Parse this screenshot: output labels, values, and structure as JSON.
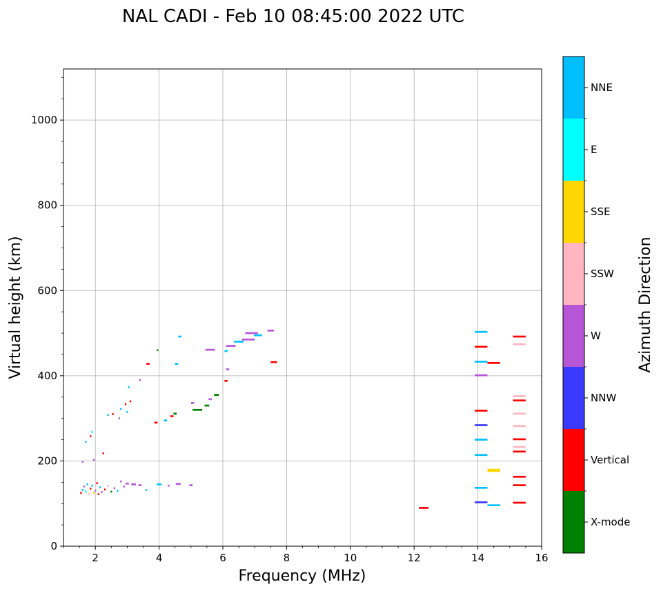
{
  "chart_data": {
    "type": "scatter",
    "title": "NAL CADI - Feb 10 08:45:00 2022 UTC",
    "xlabel": "Frequency (MHz)",
    "ylabel": "Virtual height (km)",
    "xlim": [
      1,
      16
    ],
    "ylim": [
      0,
      1120
    ],
    "xticks": [
      2,
      4,
      6,
      8,
      10,
      12,
      14,
      16
    ],
    "yticks": [
      0,
      200,
      400,
      600,
      800,
      1000
    ],
    "grid": true,
    "colorbar": {
      "label": "Azimuth Direction",
      "categories": [
        {
          "name": "X-mode",
          "color": "#008000"
        },
        {
          "name": "Vertical",
          "color": "#ff0000"
        },
        {
          "name": "NNW",
          "color": "#3a3aff"
        },
        {
          "name": "W",
          "color": "#b656d6"
        },
        {
          "name": "SSW",
          "color": "#ffb6c1"
        },
        {
          "name": "SSE",
          "color": "#ffd700"
        },
        {
          "name": "E",
          "color": "#00ffff"
        },
        {
          "name": "NNE",
          "color": "#00bfff"
        }
      ]
    },
    "echoes": [
      {
        "f": 1.55,
        "h": 125,
        "w": 0.05,
        "d": "Vertical"
      },
      {
        "f": 1.6,
        "h": 132,
        "w": 0.05,
        "d": "NNE"
      },
      {
        "f": 1.65,
        "h": 140,
        "w": 0.05,
        "d": "W"
      },
      {
        "f": 1.7,
        "h": 128,
        "w": 0.05,
        "d": "E"
      },
      {
        "f": 1.75,
        "h": 145,
        "w": 0.05,
        "d": "NNE"
      },
      {
        "f": 1.8,
        "h": 123,
        "w": 0.05,
        "d": "SSW"
      },
      {
        "f": 1.85,
        "h": 135,
        "w": 0.05,
        "d": "Vertical"
      },
      {
        "f": 1.9,
        "h": 142,
        "w": 0.05,
        "d": "NNE"
      },
      {
        "f": 1.95,
        "h": 125,
        "w": 0.05,
        "d": "SSE"
      },
      {
        "f": 2.0,
        "h": 130,
        "w": 0.05,
        "d": "W"
      },
      {
        "f": 2.05,
        "h": 148,
        "w": 0.05,
        "d": "Vertical"
      },
      {
        "f": 2.1,
        "h": 122,
        "w": 0.05,
        "d": "Vertical"
      },
      {
        "f": 2.15,
        "h": 138,
        "w": 0.05,
        "d": "NNE"
      },
      {
        "f": 2.2,
        "h": 127,
        "w": 0.05,
        "d": "W"
      },
      {
        "f": 2.3,
        "h": 133,
        "w": 0.05,
        "d": "Vertical"
      },
      {
        "f": 2.4,
        "h": 141,
        "w": 0.05,
        "d": "SSW"
      },
      {
        "f": 2.5,
        "h": 128,
        "w": 0.05,
        "d": "X-mode"
      },
      {
        "f": 2.6,
        "h": 136,
        "w": 0.05,
        "d": "W"
      },
      {
        "f": 2.7,
        "h": 130,
        "w": 0.05,
        "d": "NNE"
      },
      {
        "f": 2.8,
        "h": 152,
        "w": 0.05,
        "d": "W"
      },
      {
        "f": 2.9,
        "h": 140,
        "w": 0.05,
        "d": "W"
      },
      {
        "f": 3.0,
        "h": 147,
        "w": 0.1,
        "d": "W"
      },
      {
        "f": 3.2,
        "h": 145,
        "w": 0.15,
        "d": "W"
      },
      {
        "f": 3.4,
        "h": 143,
        "w": 0.1,
        "d": "W"
      },
      {
        "f": 3.6,
        "h": 132,
        "w": 0.05,
        "d": "NNE"
      },
      {
        "f": 4.0,
        "h": 145,
        "w": 0.15,
        "d": "NNE"
      },
      {
        "f": 4.3,
        "h": 142,
        "w": 0.05,
        "d": "W"
      },
      {
        "f": 4.6,
        "h": 146,
        "w": 0.15,
        "d": "W"
      },
      {
        "f": 5.0,
        "h": 143,
        "w": 0.1,
        "d": "W"
      },
      {
        "f": 1.6,
        "h": 198,
        "w": 0.05,
        "d": "W"
      },
      {
        "f": 1.7,
        "h": 245,
        "w": 0.05,
        "d": "NNE"
      },
      {
        "f": 1.85,
        "h": 258,
        "w": 0.05,
        "d": "Vertical"
      },
      {
        "f": 1.9,
        "h": 268,
        "w": 0.05,
        "d": "E"
      },
      {
        "f": 1.95,
        "h": 203,
        "w": 0.05,
        "d": "W"
      },
      {
        "f": 2.25,
        "h": 218,
        "w": 0.05,
        "d": "Vertical"
      },
      {
        "f": 2.4,
        "h": 308,
        "w": 0.05,
        "d": "NNE"
      },
      {
        "f": 2.55,
        "h": 310,
        "w": 0.05,
        "d": "Vertical"
      },
      {
        "f": 2.75,
        "h": 300,
        "w": 0.05,
        "d": "W"
      },
      {
        "f": 2.8,
        "h": 322,
        "w": 0.05,
        "d": "NNE"
      },
      {
        "f": 2.95,
        "h": 333,
        "w": 0.05,
        "d": "Vertical"
      },
      {
        "f": 3.0,
        "h": 315,
        "w": 0.05,
        "d": "NNE"
      },
      {
        "f": 3.1,
        "h": 340,
        "w": 0.05,
        "d": "Vertical"
      },
      {
        "f": 3.05,
        "h": 373,
        "w": 0.05,
        "d": "NNE"
      },
      {
        "f": 3.4,
        "h": 390,
        "w": 0.05,
        "d": "W"
      },
      {
        "f": 3.65,
        "h": 428,
        "w": 0.1,
        "d": "Vertical"
      },
      {
        "f": 3.95,
        "h": 460,
        "w": 0.05,
        "d": "X-mode"
      },
      {
        "f": 3.9,
        "h": 290,
        "w": 0.1,
        "d": "Vertical"
      },
      {
        "f": 4.2,
        "h": 295,
        "w": 0.1,
        "d": "NNE"
      },
      {
        "f": 4.4,
        "h": 305,
        "w": 0.1,
        "d": "Vertical"
      },
      {
        "f": 4.5,
        "h": 311,
        "w": 0.1,
        "d": "X-mode"
      },
      {
        "f": 4.55,
        "h": 428,
        "w": 0.1,
        "d": "NNE"
      },
      {
        "f": 4.65,
        "h": 492,
        "w": 0.1,
        "d": "NNE"
      },
      {
        "f": 5.05,
        "h": 336,
        "w": 0.1,
        "d": "W"
      },
      {
        "f": 5.2,
        "h": 320,
        "w": 0.3,
        "d": "X-mode"
      },
      {
        "f": 5.5,
        "h": 330,
        "w": 0.15,
        "d": "X-mode"
      },
      {
        "f": 5.6,
        "h": 345,
        "w": 0.1,
        "d": "W"
      },
      {
        "f": 5.8,
        "h": 355,
        "w": 0.15,
        "d": "X-mode"
      },
      {
        "f": 5.6,
        "h": 461,
        "w": 0.3,
        "d": "W"
      },
      {
        "f": 6.1,
        "h": 388,
        "w": 0.1,
        "d": "Vertical"
      },
      {
        "f": 6.15,
        "h": 415,
        "w": 0.1,
        "d": "W"
      },
      {
        "f": 6.1,
        "h": 458,
        "w": 0.1,
        "d": "NNE"
      },
      {
        "f": 6.25,
        "h": 470,
        "w": 0.3,
        "d": "W"
      },
      {
        "f": 6.5,
        "h": 480,
        "w": 0.3,
        "d": "NNE"
      },
      {
        "f": 6.8,
        "h": 485,
        "w": 0.4,
        "d": "W"
      },
      {
        "f": 6.9,
        "h": 500,
        "w": 0.4,
        "d": "W"
      },
      {
        "f": 7.1,
        "h": 495,
        "w": 0.25,
        "d": "NNE"
      },
      {
        "f": 7.5,
        "h": 506,
        "w": 0.2,
        "d": "W"
      },
      {
        "f": 7.6,
        "h": 432,
        "w": 0.2,
        "d": "Vertical"
      },
      {
        "f": 12.3,
        "h": 90,
        "w": 0.3,
        "d": "Vertical"
      },
      {
        "f": 14.1,
        "h": 503,
        "w": 0.4,
        "d": "NNE"
      },
      {
        "f": 14.1,
        "h": 468,
        "w": 0.4,
        "d": "Vertical"
      },
      {
        "f": 14.1,
        "h": 433,
        "w": 0.4,
        "d": "NNE"
      },
      {
        "f": 14.1,
        "h": 401,
        "w": 0.4,
        "d": "W"
      },
      {
        "f": 14.1,
        "h": 318,
        "w": 0.4,
        "d": "Vertical"
      },
      {
        "f": 14.1,
        "h": 284,
        "w": 0.4,
        "d": "NNW"
      },
      {
        "f": 14.1,
        "h": 250,
        "w": 0.4,
        "d": "NNE"
      },
      {
        "f": 14.1,
        "h": 214,
        "w": 0.4,
        "d": "NNE"
      },
      {
        "f": 14.1,
        "h": 137,
        "w": 0.4,
        "d": "NNE"
      },
      {
        "f": 14.1,
        "h": 103,
        "w": 0.4,
        "d": "NNW"
      },
      {
        "f": 14.5,
        "h": 430,
        "w": 0.4,
        "d": "Vertical"
      },
      {
        "f": 14.5,
        "h": 178,
        "w": 0.4,
        "d": "SSE"
      },
      {
        "f": 14.5,
        "h": 96,
        "w": 0.4,
        "d": "NNE"
      },
      {
        "f": 15.3,
        "h": 492,
        "w": 0.4,
        "d": "Vertical"
      },
      {
        "f": 15.3,
        "h": 474,
        "w": 0.4,
        "d": "SSW"
      },
      {
        "f": 15.3,
        "h": 352,
        "w": 0.4,
        "d": "SSW"
      },
      {
        "f": 15.3,
        "h": 342,
        "w": 0.4,
        "d": "Vertical"
      },
      {
        "f": 15.3,
        "h": 311,
        "w": 0.4,
        "d": "SSW"
      },
      {
        "f": 15.3,
        "h": 282,
        "w": 0.4,
        "d": "SSW"
      },
      {
        "f": 15.3,
        "h": 251,
        "w": 0.4,
        "d": "Vertical"
      },
      {
        "f": 15.3,
        "h": 233,
        "w": 0.4,
        "d": "SSW"
      },
      {
        "f": 15.3,
        "h": 222,
        "w": 0.4,
        "d": "Vertical"
      },
      {
        "f": 15.3,
        "h": 163,
        "w": 0.4,
        "d": "Vertical"
      },
      {
        "f": 15.3,
        "h": 143,
        "w": 0.4,
        "d": "Vertical"
      },
      {
        "f": 15.3,
        "h": 102,
        "w": 0.4,
        "d": "Vertical"
      }
    ]
  }
}
